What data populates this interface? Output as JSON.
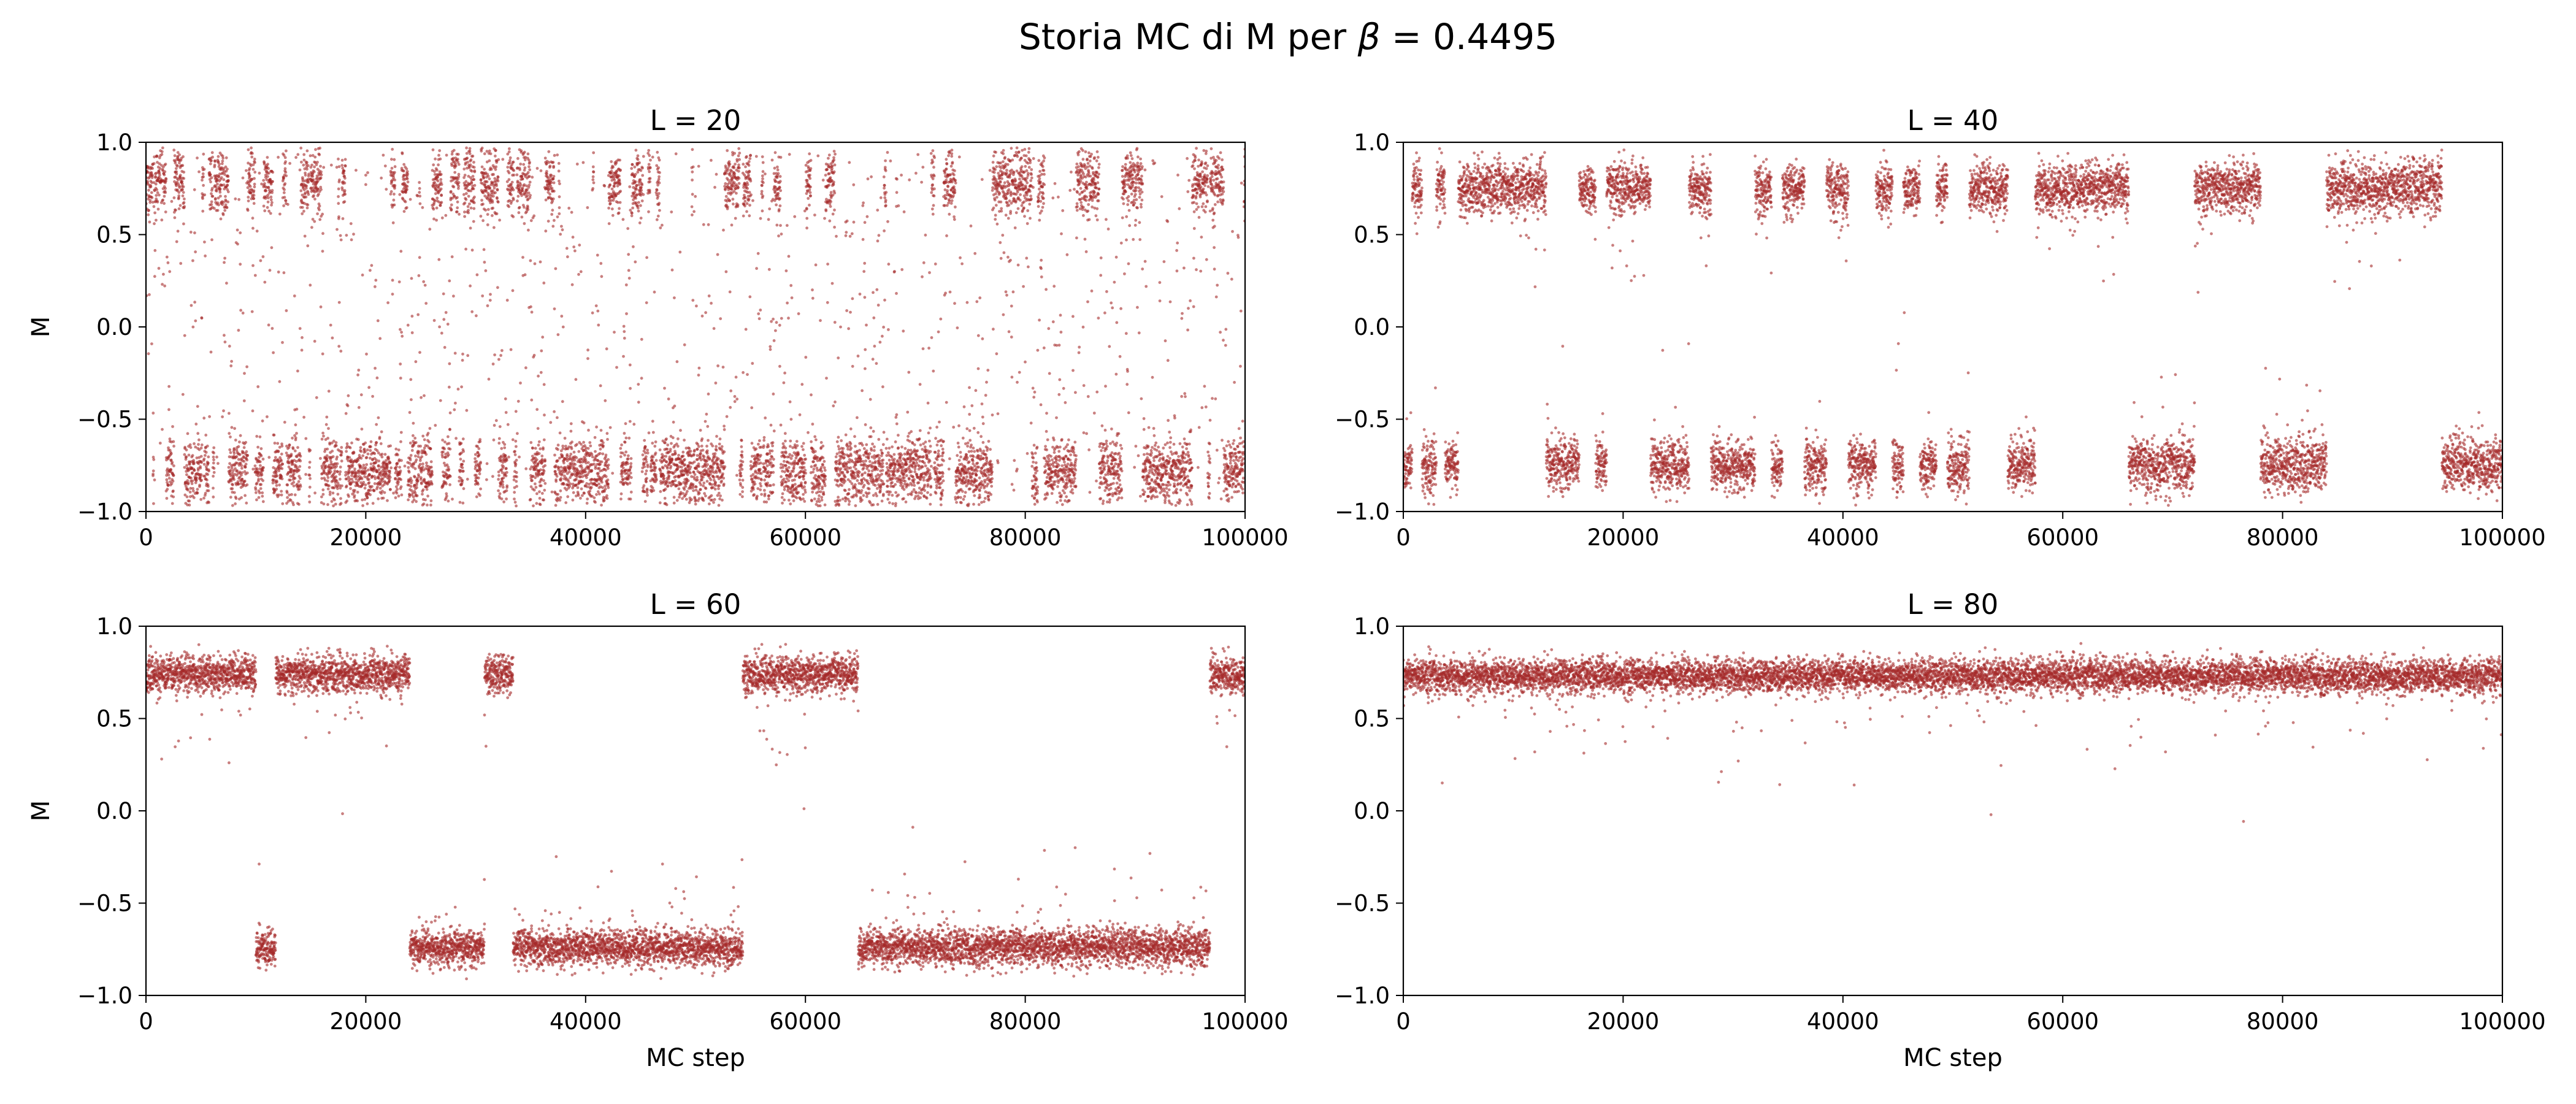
{
  "figure": {
    "suptitle_prefix": "Storia MC di M per ",
    "suptitle_symbol": "β",
    "suptitle_suffix": " = 0.4495"
  },
  "style": {
    "point_color": "#a52a2a",
    "background": "#ffffff",
    "axis_color": "#000000"
  },
  "chart_data": [
    {
      "type": "scatter",
      "title": "L = 20",
      "xlabel": "",
      "ylabel": "M",
      "xlim": [
        0,
        100000
      ],
      "ylim": [
        -1.0,
        1.0
      ],
      "x_ticks": [
        "0",
        "20000",
        "40000",
        "60000",
        "80000",
        "100000"
      ],
      "y_ticks": [
        "−1.0",
        "−0.5",
        "0.0",
        "0.5",
        "1.0"
      ],
      "grid": false,
      "n_steps": 100000,
      "plateau_up": 0.78,
      "plateau_down": -0.78,
      "spread": 0.09,
      "typical_dwell_steps": 900,
      "flip_frequency": "very frequent"
    },
    {
      "type": "scatter",
      "title": "L = 40",
      "xlabel": "",
      "ylabel": "",
      "xlim": [
        0,
        100000
      ],
      "ylim": [
        -1.0,
        1.0
      ],
      "x_ticks": [
        "0",
        "20000",
        "40000",
        "60000",
        "80000",
        "100000"
      ],
      "y_ticks": [
        "−1.0",
        "−0.5",
        "0.0",
        "0.5",
        "1.0"
      ],
      "grid": false,
      "n_steps": 100000,
      "plateau_up": 0.75,
      "plateau_down": -0.75,
      "spread": 0.07,
      "sign_segments": [
        {
          "start": 0,
          "end": 800,
          "sign": -1
        },
        {
          "start": 800,
          "end": 1700,
          "sign": 1
        },
        {
          "start": 1700,
          "end": 3000,
          "sign": -1
        },
        {
          "start": 3000,
          "end": 3800,
          "sign": 1
        },
        {
          "start": 3800,
          "end": 5000,
          "sign": -1
        },
        {
          "start": 5000,
          "end": 13000,
          "sign": 1
        },
        {
          "start": 13000,
          "end": 16000,
          "sign": -1
        },
        {
          "start": 16000,
          "end": 17500,
          "sign": 1
        },
        {
          "start": 17500,
          "end": 18500,
          "sign": -1
        },
        {
          "start": 18500,
          "end": 22500,
          "sign": 1
        },
        {
          "start": 22500,
          "end": 26000,
          "sign": -1
        },
        {
          "start": 26000,
          "end": 28000,
          "sign": 1
        },
        {
          "start": 28000,
          "end": 32000,
          "sign": -1
        },
        {
          "start": 32000,
          "end": 33500,
          "sign": 1
        },
        {
          "start": 33500,
          "end": 34500,
          "sign": -1
        },
        {
          "start": 34500,
          "end": 36500,
          "sign": 1
        },
        {
          "start": 36500,
          "end": 38500,
          "sign": -1
        },
        {
          "start": 38500,
          "end": 40500,
          "sign": 1
        },
        {
          "start": 40500,
          "end": 43000,
          "sign": -1
        },
        {
          "start": 43000,
          "end": 44500,
          "sign": 1
        },
        {
          "start": 44500,
          "end": 45500,
          "sign": -1
        },
        {
          "start": 45500,
          "end": 47000,
          "sign": 1
        },
        {
          "start": 47000,
          "end": 48500,
          "sign": -1
        },
        {
          "start": 48500,
          "end": 49500,
          "sign": 1
        },
        {
          "start": 49500,
          "end": 51500,
          "sign": -1
        },
        {
          "start": 51500,
          "end": 55000,
          "sign": 1
        },
        {
          "start": 55000,
          "end": 57500,
          "sign": -1
        },
        {
          "start": 57500,
          "end": 58000,
          "sign": 1
        },
        {
          "start": 58000,
          "end": 66000,
          "sign": 1
        },
        {
          "start": 66000,
          "end": 72000,
          "sign": -1
        },
        {
          "start": 72000,
          "end": 78000,
          "sign": 1
        },
        {
          "start": 78000,
          "end": 84000,
          "sign": -1
        },
        {
          "start": 84000,
          "end": 94500,
          "sign": 1
        },
        {
          "start": 94500,
          "end": 100000,
          "sign": -1
        }
      ]
    },
    {
      "type": "scatter",
      "title": "L = 60",
      "xlabel": "MC step",
      "ylabel": "M",
      "xlim": [
        0,
        100000
      ],
      "ylim": [
        -1.0,
        1.0
      ],
      "x_ticks": [
        "0",
        "20000",
        "40000",
        "60000",
        "80000",
        "100000"
      ],
      "y_ticks": [
        "−1.0",
        "−0.5",
        "0.0",
        "0.5",
        "1.0"
      ],
      "grid": false,
      "n_steps": 100000,
      "plateau_up": 0.74,
      "plateau_down": -0.74,
      "spread": 0.05,
      "sign_segments": [
        {
          "start": 0,
          "end": 10000,
          "sign": 1
        },
        {
          "start": 10000,
          "end": 11800,
          "sign": -1
        },
        {
          "start": 11800,
          "end": 24000,
          "sign": 1
        },
        {
          "start": 24000,
          "end": 30800,
          "sign": -1
        },
        {
          "start": 30800,
          "end": 33400,
          "sign": 1
        },
        {
          "start": 33400,
          "end": 54300,
          "sign": -1
        },
        {
          "start": 54300,
          "end": 64800,
          "sign": 1
        },
        {
          "start": 64800,
          "end": 96800,
          "sign": -1
        },
        {
          "start": 96800,
          "end": 100000,
          "sign": 1
        }
      ]
    },
    {
      "type": "scatter",
      "title": "L = 80",
      "xlabel": "MC step",
      "ylabel": "",
      "xlim": [
        0,
        100000
      ],
      "ylim": [
        -1.0,
        1.0
      ],
      "x_ticks": [
        "0",
        "20000",
        "40000",
        "60000",
        "80000",
        "100000"
      ],
      "y_ticks": [
        "−1.0",
        "−0.5",
        "0.0",
        "0.5",
        "1.0"
      ],
      "grid": false,
      "n_steps": 100000,
      "plateau_up": 0.73,
      "plateau_down": -0.73,
      "spread": 0.045,
      "sign_segments": [
        {
          "start": 0,
          "end": 100000,
          "sign": 1
        }
      ]
    }
  ]
}
